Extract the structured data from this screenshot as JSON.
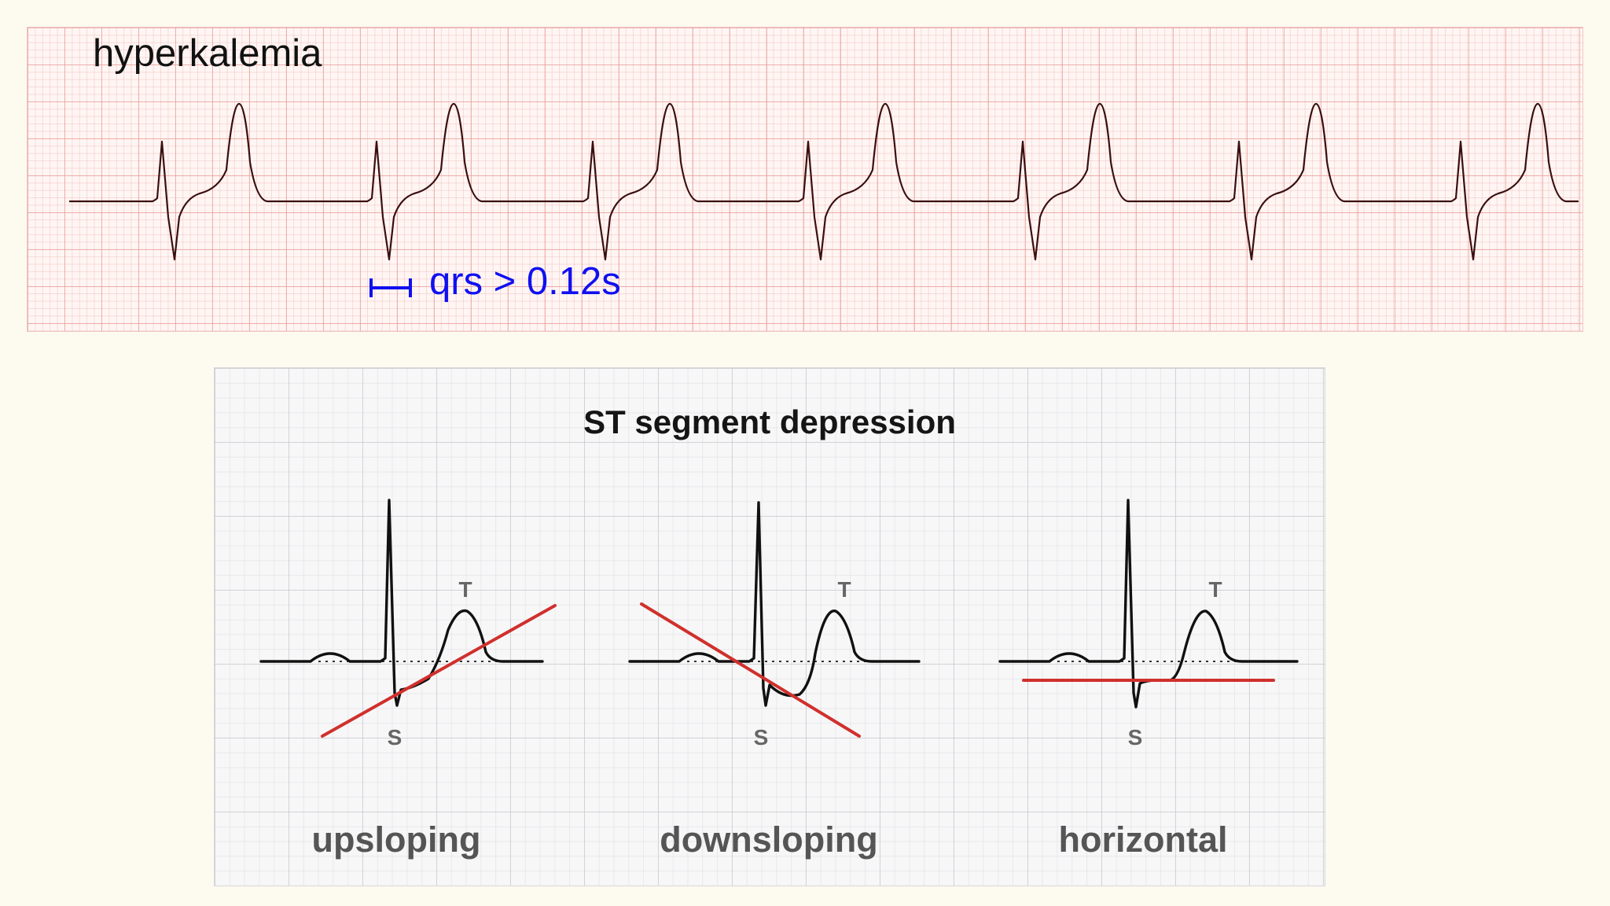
{
  "ecg": {
    "title": "hyperkalemia",
    "annotation": "qrs > 0.12s",
    "annotation_color": "#1010f0",
    "trace_color": "#3a0f0f",
    "beat_count": 7
  },
  "st_diagram": {
    "title": "ST segment depression",
    "line_color": "#d0302c",
    "variants": [
      {
        "label": "upsloping",
        "s_label": "S",
        "t_label": "T"
      },
      {
        "label": "downsloping",
        "s_label": "S",
        "t_label": "T"
      },
      {
        "label": "horizontal",
        "s_label": "S",
        "t_label": "T"
      }
    ]
  }
}
